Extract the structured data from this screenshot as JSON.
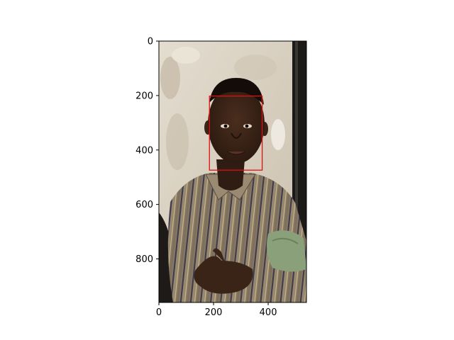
{
  "chart_data": {
    "type": "image",
    "title": "",
    "xlabel": "",
    "ylabel": "",
    "xlim": [
      0,
      540
    ],
    "ylim": [
      960,
      0
    ],
    "x_ticks": [
      0,
      200,
      400
    ],
    "y_ticks": [
      0,
      200,
      400,
      600,
      800
    ],
    "grid": false,
    "annotations": [
      {
        "kind": "rectangle",
        "color": "#e01010",
        "x0": 185,
        "y0": 202,
        "x1": 378,
        "y1": 474
      }
    ]
  },
  "image": {
    "description": "photograph of a young man in a striped button shirt standing against a weathered white wall, holding a green cloth"
  },
  "colors": {
    "wall": "#d8d0c2",
    "skin": "#3a2418",
    "shirt": "#8c7d68",
    "stripe_dark": "#3c3a4c",
    "cloth": "#8aa07a",
    "door": "#1c1a18",
    "box": "#e01010"
  }
}
